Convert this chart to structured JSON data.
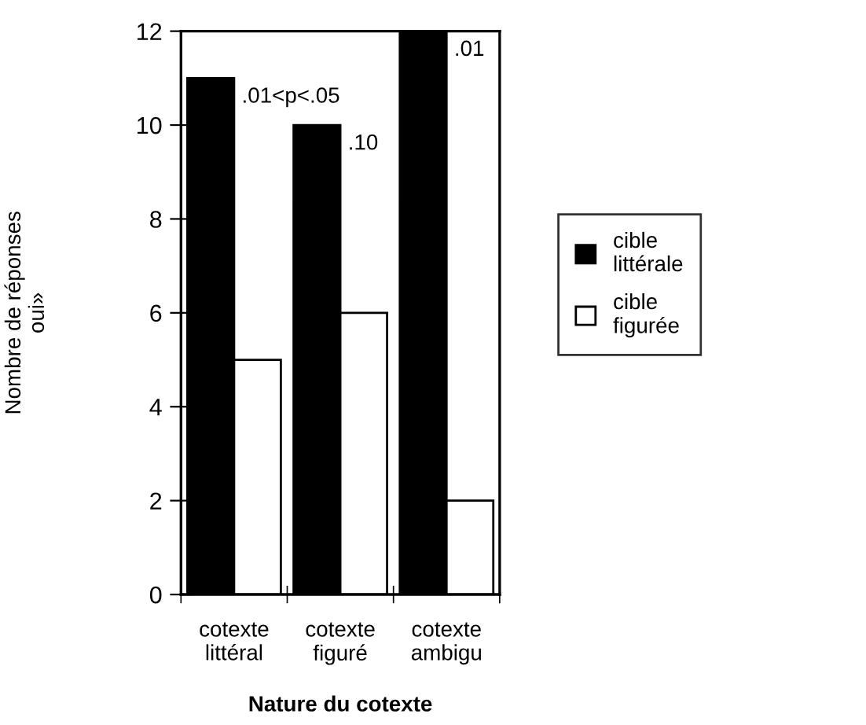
{
  "chart_data": {
    "type": "bar",
    "xlabel": "Nature du cotexte",
    "ylabel": "Nombre de réponses\noui»",
    "categories": [
      "cotexte\nlittéral",
      "cotexte\nfiguré",
      "cotexte\nambigu"
    ],
    "series": [
      {
        "name": "cible\nlittérale",
        "color": "#000000",
        "values": [
          11,
          10,
          12
        ]
      },
      {
        "name": "cible\nfigurée",
        "color": "#ffffff",
        "values": [
          5,
          6,
          2
        ]
      }
    ],
    "ylim": [
      0,
      12
    ],
    "yticks": [
      0,
      2,
      4,
      6,
      8,
      10,
      12
    ],
    "grid": false,
    "legend": "right",
    "annotations": [
      {
        "text": ".01<p<.05",
        "x": "cotexte\nlittéral",
        "y": 11
      },
      {
        "text": ".10",
        "x": "cotexte\nfiguré",
        "y": 10
      },
      {
        "text": ".01",
        "x": "cotexte\nambigu",
        "y": 12
      }
    ]
  }
}
